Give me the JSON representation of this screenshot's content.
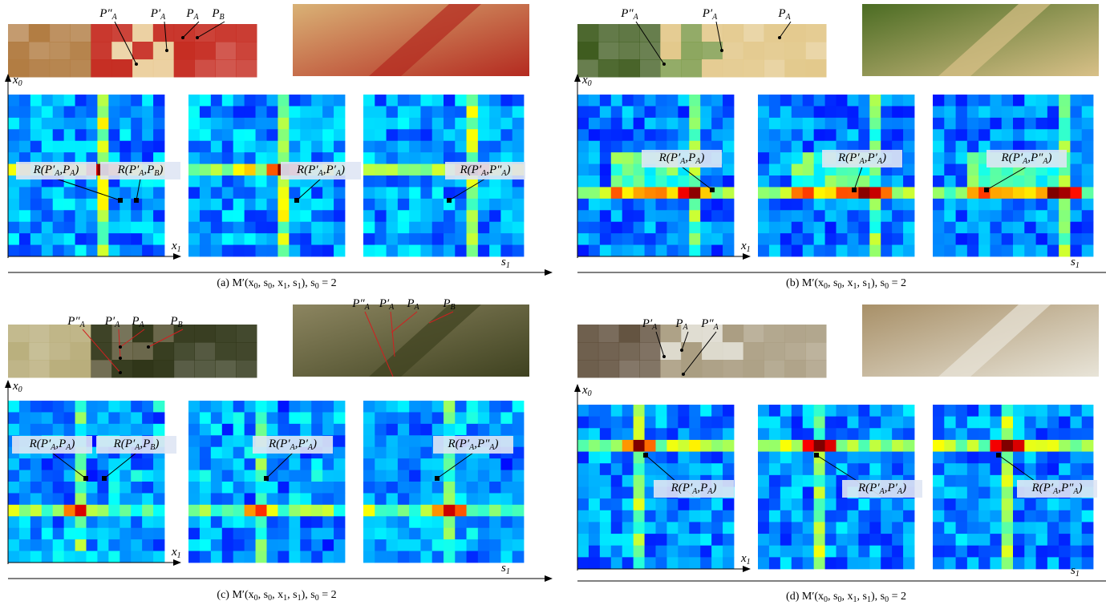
{
  "panels": [
    {
      "caption": "(a) M′(x0, s0, x1, s1), s0 = 2",
      "axis_x0": "x0",
      "axis_x1": "x1",
      "axis_s1": "s1",
      "point_labels": [
        "P″A",
        "P′A",
        "PA",
        "PB"
      ],
      "region_labels": [
        "R(P′A,PA)",
        "R(P′A,PB)",
        "R(P′A,P′A)",
        "R(P′A,P″A)"
      ]
    },
    {
      "caption": "(b) M′(x0, s0, x1, s1), s0 = 2",
      "axis_x0": "x0",
      "axis_x1": "x1",
      "axis_s1": "s1",
      "point_labels": [
        "P″A",
        "P′A",
        "PA"
      ],
      "region_labels": [
        "R(P′A,PA)",
        "R(P′A,P′A)",
        "R(P′A,P″A)"
      ]
    },
    {
      "caption": "(c) M′(x0, s0, x1, s1), s0 = 2",
      "axis_x0": "x0",
      "axis_x1": "x1",
      "axis_s1": "s1",
      "point_labels": [
        "P″A",
        "P′A",
        "PA",
        "PB"
      ],
      "photo_labels": [
        "P″A",
        "P′A",
        "PA",
        "PB"
      ],
      "region_labels": [
        "R(P′A,PA)",
        "R(P′A,PB)",
        "R(P′A,P′A)",
        "R(P′A,P″A)"
      ]
    },
    {
      "caption": "(d) M′(x0, s0, x1, s1), s0 = 2",
      "axis_x0": "x0",
      "axis_x1": "x1",
      "axis_s1": "s1",
      "point_labels": [
        "P′A",
        "PA",
        "P″A"
      ],
      "region_labels": [
        "R(P′A,PA)",
        "R(P′A,P′A)",
        "R(P′A,P″A)"
      ]
    }
  ]
}
